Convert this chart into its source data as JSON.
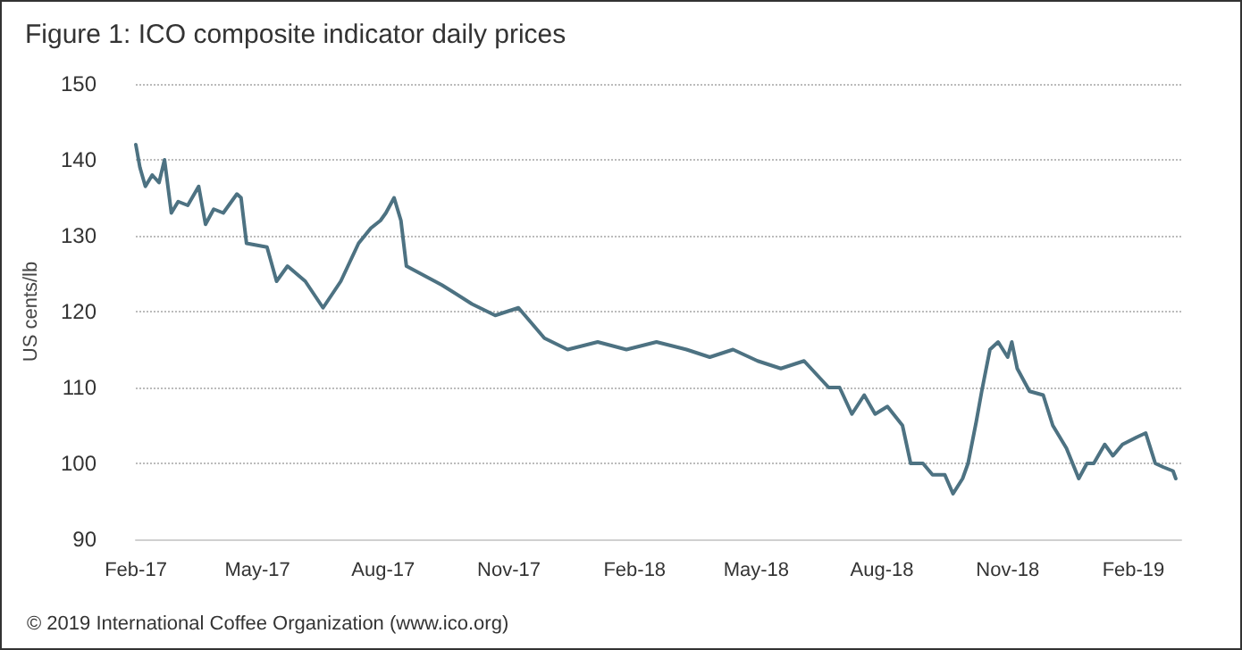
{
  "chart_data": {
    "type": "line",
    "title": "Figure 1: ICO composite indicator daily prices",
    "ylabel": "US cents/lb",
    "annotations": [
      "© 2019 International Coffee Organization (www.ico.org)"
    ],
    "x": [
      "2017-02-01",
      "2017-02-04",
      "2017-02-08",
      "2017-02-13",
      "2017-02-18",
      "2017-02-22",
      "2017-02-27",
      "2017-03-04",
      "2017-03-11",
      "2017-03-19",
      "2017-03-24",
      "2017-03-30",
      "2017-04-06",
      "2017-04-12",
      "2017-04-16",
      "2017-04-19",
      "2017-04-23",
      "2017-05-08",
      "2017-05-15",
      "2017-05-23",
      "2017-06-05",
      "2017-06-18",
      "2017-07-01",
      "2017-07-14",
      "2017-07-23",
      "2017-07-30",
      "2017-08-03",
      "2017-08-09",
      "2017-08-14",
      "2017-08-18",
      "2017-09-13",
      "2017-10-05",
      "2017-10-22",
      "2017-11-08",
      "2017-11-27",
      "2017-12-14",
      "2018-01-05",
      "2018-01-26",
      "2018-02-17",
      "2018-03-11",
      "2018-03-28",
      "2018-04-14",
      "2018-05-02",
      "2018-05-19",
      "2018-06-05",
      "2018-06-23",
      "2018-07-01",
      "2018-07-10",
      "2018-07-19",
      "2018-07-27",
      "2018-08-05",
      "2018-08-16",
      "2018-08-22",
      "2018-08-31",
      "2018-09-07",
      "2018-09-16",
      "2018-09-22",
      "2018-09-29",
      "2018-10-03",
      "2018-10-09",
      "2018-10-13",
      "2018-10-19",
      "2018-10-25",
      "2018-11-01",
      "2018-11-04",
      "2018-11-08",
      "2018-11-17",
      "2018-11-27",
      "2018-12-04",
      "2018-12-14",
      "2018-12-23",
      "2018-12-29",
      "2019-01-03",
      "2019-01-11",
      "2019-01-17",
      "2019-01-24",
      "2019-02-04",
      "2019-02-10",
      "2019-02-17",
      "2019-02-23",
      "2019-03-02",
      "2019-03-04"
    ],
    "series": [
      {
        "color": "#4d7282",
        "values": [
          142,
          139,
          136.5,
          138,
          137,
          140,
          133,
          134.5,
          134,
          136.5,
          131.5,
          133.5,
          133,
          134.5,
          135.5,
          135,
          129,
          128.5,
          124,
          126,
          124,
          120.5,
          124,
          129,
          131,
          132,
          133,
          135,
          132,
          126,
          123.5,
          121,
          119.5,
          120.5,
          116.5,
          115,
          116,
          115,
          116,
          115,
          114,
          115,
          113.5,
          112.5,
          113.5,
          110,
          110,
          106.5,
          109,
          106.5,
          107.5,
          105,
          100,
          100,
          98.5,
          98.5,
          96,
          98,
          100,
          105.5,
          109.5,
          115,
          116,
          114,
          116,
          112.5,
          109.5,
          109,
          105,
          102,
          98,
          100,
          100,
          102.5,
          101,
          102.5,
          103.5,
          104,
          100,
          99.5,
          99,
          98
        ]
      }
    ],
    "xlim": [
      "2017-02-01",
      "2019-03-08"
    ],
    "xticks": [
      {
        "value": "2017-02-01",
        "label": "Feb-17"
      },
      {
        "value": "2017-05-01",
        "label": "May-17"
      },
      {
        "value": "2017-08-01",
        "label": "Aug-17"
      },
      {
        "value": "2017-11-01",
        "label": "Nov-17"
      },
      {
        "value": "2018-02-01",
        "label": "Feb-18"
      },
      {
        "value": "2018-05-01",
        "label": "May-18"
      },
      {
        "value": "2018-08-01",
        "label": "Aug-18"
      },
      {
        "value": "2018-11-01",
        "label": "Nov-18"
      },
      {
        "value": "2019-02-01",
        "label": "Feb-19"
      }
    ],
    "ylim": [
      90,
      150
    ],
    "yticks": [
      90,
      100,
      110,
      120,
      130,
      140,
      150
    ],
    "grid": "y",
    "marker": "none",
    "line_style": "solid"
  }
}
